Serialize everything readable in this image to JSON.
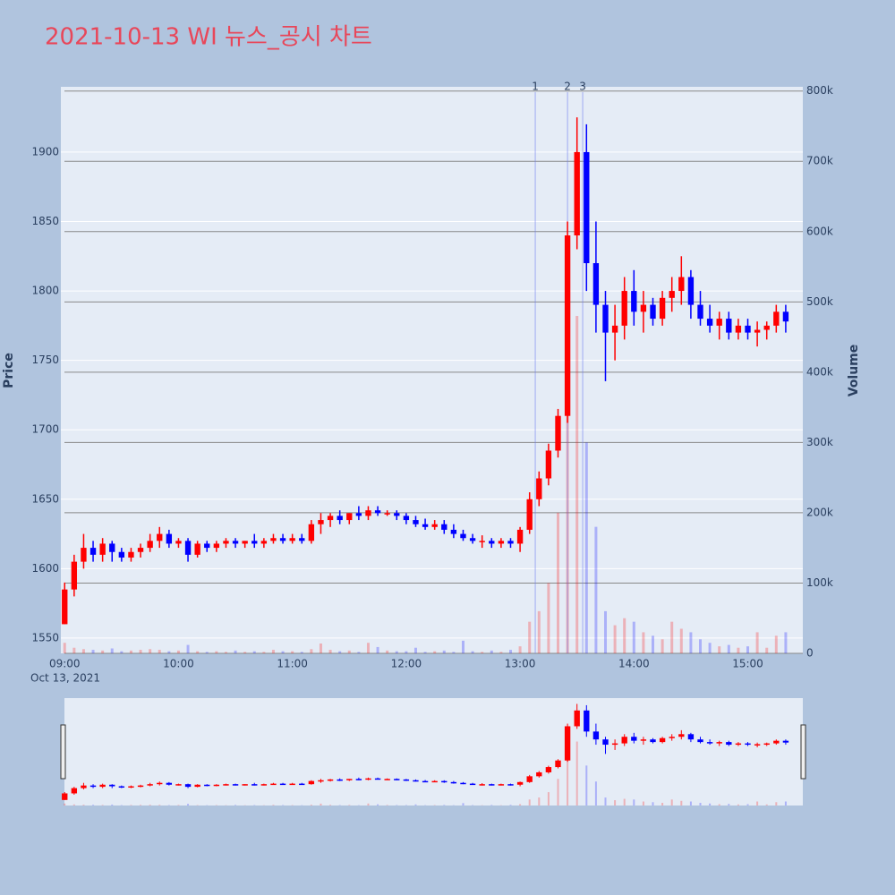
{
  "chart_data": {
    "type": "candlestick",
    "title": "2021-10-13 WI 뉴스_공시 차트",
    "y_label": "Price",
    "y2_label": "Volume",
    "xtick_sublabel": "Oct 13, 2021",
    "increasing_color": "#ff0000",
    "decreasing_color": "#0000ff",
    "xlim": [
      "08:58",
      "15:29"
    ],
    "xticks": [
      "09:00",
      "10:00",
      "11:00",
      "12:00",
      "13:00",
      "14:00",
      "15:00"
    ],
    "ylim": [
      1539,
      1947
    ],
    "yticks": [
      1550,
      1600,
      1650,
      1700,
      1750,
      1800,
      1850,
      1900
    ],
    "y2lim": [
      0,
      806000
    ],
    "y2ticks": [
      0,
      {
        "value": 100000,
        "label": "100k"
      },
      {
        "value": 200000,
        "label": "200k"
      },
      {
        "value": 300000,
        "label": "300k"
      },
      {
        "value": 400000,
        "label": "400k"
      },
      {
        "value": 500000,
        "label": "500k"
      },
      {
        "value": 600000,
        "label": "600k"
      },
      {
        "value": 700000,
        "label": "700k"
      },
      {
        "value": 800000,
        "label": "800k"
      }
    ],
    "grid": true,
    "range_slider": true,
    "events": [
      {
        "x": "13:08",
        "label": "1"
      },
      {
        "x": "13:25",
        "label": "2"
      },
      {
        "x": "13:33",
        "label": "3"
      }
    ],
    "x": [
      "09:00",
      "09:05",
      "09:10",
      "09:15",
      "09:20",
      "09:25",
      "09:30",
      "09:35",
      "09:40",
      "09:45",
      "09:50",
      "09:55",
      "10:00",
      "10:05",
      "10:10",
      "10:15",
      "10:20",
      "10:25",
      "10:30",
      "10:35",
      "10:40",
      "10:45",
      "10:50",
      "10:55",
      "11:00",
      "11:05",
      "11:10",
      "11:15",
      "11:20",
      "11:25",
      "11:30",
      "11:35",
      "11:40",
      "11:45",
      "11:50",
      "11:55",
      "12:00",
      "12:05",
      "12:10",
      "12:15",
      "12:20",
      "12:25",
      "12:30",
      "12:35",
      "12:40",
      "12:45",
      "12:50",
      "12:55",
      "13:00",
      "13:05",
      "13:10",
      "13:15",
      "13:20",
      "13:25",
      "13:30",
      "13:35",
      "13:40",
      "13:45",
      "13:50",
      "13:55",
      "14:00",
      "14:05",
      "14:10",
      "14:15",
      "14:20",
      "14:25",
      "14:30",
      "14:35",
      "14:40",
      "14:45",
      "14:50",
      "14:55",
      "15:00",
      "15:05",
      "15:10",
      "15:15",
      "15:20"
    ],
    "open": [
      1560,
      1585,
      1605,
      1615,
      1610,
      1618,
      1612,
      1608,
      1612,
      1615,
      1620,
      1625,
      1618,
      1620,
      1610,
      1618,
      1615,
      1618,
      1620,
      1618,
      1620,
      1618,
      1620,
      1622,
      1620,
      1622,
      1620,
      1632,
      1635,
      1638,
      1635,
      1640,
      1638,
      1642,
      1640,
      1640,
      1638,
      1635,
      1632,
      1630,
      1632,
      1628,
      1625,
      1622,
      1620,
      1620,
      1618,
      1620,
      1618,
      1628,
      1650,
      1665,
      1685,
      1710,
      1840,
      1900,
      1820,
      1790,
      1770,
      1775,
      1800,
      1785,
      1790,
      1780,
      1795,
      1800,
      1810,
      1790,
      1780,
      1775,
      1780,
      1770,
      1775,
      1770,
      1772,
      1775,
      1785
    ],
    "high": [
      1590,
      1610,
      1625,
      1620,
      1622,
      1620,
      1615,
      1615,
      1618,
      1625,
      1630,
      1628,
      1622,
      1622,
      1620,
      1620,
      1620,
      1622,
      1622,
      1620,
      1625,
      1622,
      1625,
      1625,
      1625,
      1625,
      1635,
      1640,
      1640,
      1642,
      1640,
      1645,
      1645,
      1645,
      1642,
      1642,
      1640,
      1638,
      1636,
      1635,
      1635,
      1632,
      1628,
      1625,
      1624,
      1622,
      1622,
      1622,
      1630,
      1655,
      1670,
      1690,
      1715,
      1850,
      1925,
      1920,
      1850,
      1800,
      1790,
      1810,
      1815,
      1800,
      1795,
      1800,
      1810,
      1825,
      1815,
      1800,
      1790,
      1785,
      1785,
      1780,
      1780,
      1778,
      1778,
      1790,
      1790
    ],
    "low": [
      1560,
      1580,
      1600,
      1605,
      1605,
      1605,
      1605,
      1605,
      1608,
      1612,
      1615,
      1615,
      1615,
      1605,
      1608,
      1612,
      1612,
      1615,
      1615,
      1615,
      1615,
      1615,
      1618,
      1618,
      1618,
      1618,
      1618,
      1625,
      1630,
      1632,
      1632,
      1635,
      1635,
      1638,
      1638,
      1635,
      1632,
      1630,
      1628,
      1628,
      1625,
      1622,
      1620,
      1618,
      1615,
      1615,
      1615,
      1615,
      1612,
      1625,
      1645,
      1660,
      1680,
      1705,
      1830,
      1800,
      1770,
      1735,
      1750,
      1765,
      1775,
      1770,
      1775,
      1775,
      1785,
      1790,
      1780,
      1775,
      1770,
      1765,
      1765,
      1765,
      1765,
      1760,
      1765,
      1770,
      1770
    ],
    "close": [
      1585,
      1605,
      1615,
      1610,
      1618,
      1612,
      1608,
      1612,
      1615,
      1620,
      1625,
      1618,
      1620,
      1610,
      1618,
      1615,
      1618,
      1620,
      1618,
      1620,
      1618,
      1620,
      1622,
      1620,
      1622,
      1620,
      1632,
      1635,
      1638,
      1635,
      1640,
      1638,
      1642,
      1640,
      1640,
      1638,
      1635,
      1632,
      1630,
      1632,
      1628,
      1625,
      1622,
      1620,
      1620,
      1618,
      1620,
      1618,
      1628,
      1650,
      1665,
      1685,
      1710,
      1840,
      1900,
      1820,
      1790,
      1770,
      1775,
      1800,
      1785,
      1790,
      1780,
      1795,
      1800,
      1810,
      1790,
      1780,
      1775,
      1780,
      1770,
      1775,
      1770,
      1772,
      1775,
      1785,
      1778
    ],
    "volume": [
      15000,
      8000,
      6000,
      5000,
      4000,
      7000,
      3000,
      4000,
      5000,
      6000,
      5000,
      3000,
      4000,
      12000,
      3000,
      2000,
      3000,
      2000,
      4000,
      2000,
      3000,
      2000,
      5000,
      3000,
      3000,
      2000,
      6000,
      14000,
      5000,
      3000,
      4000,
      2000,
      15000,
      9000,
      4000,
      3000,
      3000,
      8000,
      2000,
      3000,
      4000,
      2000,
      18000,
      3000,
      2000,
      4000,
      2000,
      5000,
      10000,
      45000,
      60000,
      100000,
      200000,
      350000,
      480000,
      300000,
      180000,
      60000,
      40000,
      50000,
      45000,
      30000,
      25000,
      20000,
      45000,
      35000,
      30000,
      20000,
      15000,
      10000,
      12000,
      8000,
      10000,
      30000,
      8000,
      25000,
      30000
    ]
  }
}
